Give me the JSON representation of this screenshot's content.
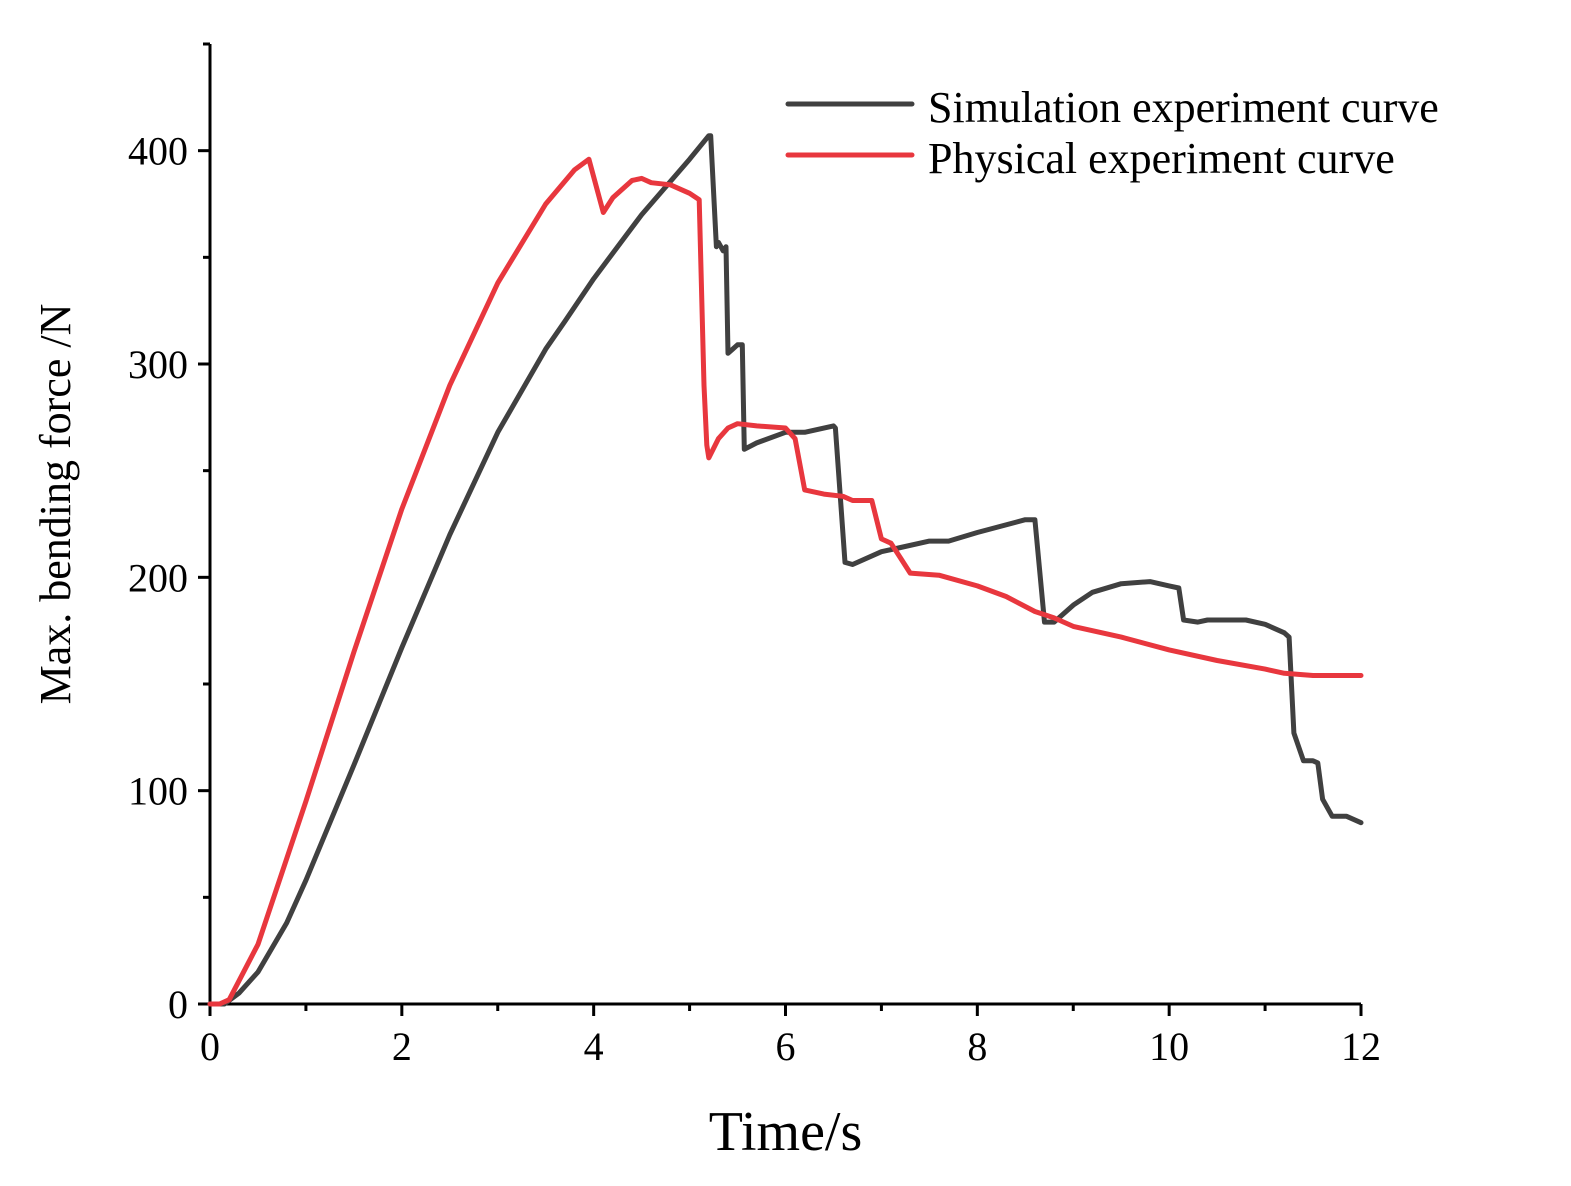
{
  "chart_data": {
    "type": "line",
    "title": "",
    "xlabel": "Time/s",
    "ylabel": "Max. bending force /N",
    "xlim": [
      0,
      12
    ],
    "ylim": [
      0,
      450
    ],
    "x_ticks": [
      0,
      2,
      4,
      6,
      8,
      10,
      12
    ],
    "x_tick_labels": [
      "0",
      "2",
      "4",
      "6",
      "8",
      "10",
      "12"
    ],
    "x_minor_ticks": [
      1,
      3,
      5,
      7,
      9,
      11
    ],
    "y_ticks": [
      0,
      100,
      200,
      300,
      400
    ],
    "y_tick_labels": [
      "0",
      "100",
      "200",
      "300",
      "400"
    ],
    "y_minor_ticks": [
      50,
      150,
      250,
      350,
      450
    ],
    "grid": false,
    "legend_position": "top-right",
    "series": [
      {
        "name": "Simulation experiment curve",
        "color": "#404040",
        "points": [
          [
            0,
            0
          ],
          [
            0.15,
            0
          ],
          [
            0.3,
            5
          ],
          [
            0.5,
            15
          ],
          [
            0.8,
            38
          ],
          [
            1,
            58
          ],
          [
            1.5,
            112
          ],
          [
            2,
            167
          ],
          [
            2.5,
            220
          ],
          [
            3,
            268
          ],
          [
            3.5,
            307
          ],
          [
            3.7,
            320
          ],
          [
            4,
            340
          ],
          [
            4.5,
            370
          ],
          [
            5,
            396
          ],
          [
            5.2,
            407
          ],
          [
            5.22,
            407
          ],
          [
            5.28,
            355
          ],
          [
            5.3,
            357
          ],
          [
            5.35,
            353
          ],
          [
            5.38,
            355
          ],
          [
            5.4,
            305
          ],
          [
            5.45,
            307
          ],
          [
            5.5,
            309
          ],
          [
            5.55,
            309
          ],
          [
            5.57,
            260
          ],
          [
            5.7,
            263
          ],
          [
            6,
            268
          ],
          [
            6.2,
            268
          ],
          [
            6.5,
            271
          ],
          [
            6.52,
            270
          ],
          [
            6.62,
            207
          ],
          [
            6.7,
            206
          ],
          [
            7,
            212
          ],
          [
            7.2,
            214
          ],
          [
            7.5,
            217
          ],
          [
            7.7,
            217
          ],
          [
            8,
            221
          ],
          [
            8.5,
            227
          ],
          [
            8.6,
            227
          ],
          [
            8.7,
            179
          ],
          [
            8.8,
            179
          ],
          [
            9,
            187
          ],
          [
            9.2,
            193
          ],
          [
            9.5,
            197
          ],
          [
            9.8,
            198
          ],
          [
            10,
            196
          ],
          [
            10.1,
            195
          ],
          [
            10.15,
            180
          ],
          [
            10.3,
            179
          ],
          [
            10.4,
            180
          ],
          [
            10.8,
            180
          ],
          [
            11,
            178
          ],
          [
            11.2,
            174
          ],
          [
            11.25,
            172
          ],
          [
            11.3,
            127
          ],
          [
            11.4,
            114
          ],
          [
            11.5,
            114
          ],
          [
            11.55,
            113
          ],
          [
            11.6,
            96
          ],
          [
            11.7,
            88
          ],
          [
            11.85,
            88
          ],
          [
            12,
            85
          ]
        ]
      },
      {
        "name": "Physical experiment curve",
        "color": "#e8373e",
        "points": [
          [
            0,
            0
          ],
          [
            0.1,
            0
          ],
          [
            0.2,
            2
          ],
          [
            0.5,
            28
          ],
          [
            1,
            95
          ],
          [
            1.5,
            165
          ],
          [
            2,
            232
          ],
          [
            2.5,
            290
          ],
          [
            3,
            338
          ],
          [
            3.5,
            375
          ],
          [
            3.8,
            391
          ],
          [
            3.95,
            396
          ],
          [
            4.1,
            371
          ],
          [
            4.2,
            378
          ],
          [
            4.4,
            386
          ],
          [
            4.5,
            387
          ],
          [
            4.6,
            385
          ],
          [
            4.8,
            384
          ],
          [
            5,
            380
          ],
          [
            5.1,
            377
          ],
          [
            5.15,
            290
          ],
          [
            5.18,
            262
          ],
          [
            5.2,
            256
          ],
          [
            5.3,
            265
          ],
          [
            5.4,
            270
          ],
          [
            5.5,
            272
          ],
          [
            5.7,
            271
          ],
          [
            6,
            270
          ],
          [
            6.1,
            265
          ],
          [
            6.2,
            241
          ],
          [
            6.4,
            239
          ],
          [
            6.6,
            238
          ],
          [
            6.7,
            236
          ],
          [
            6.9,
            236
          ],
          [
            7,
            218
          ],
          [
            7.1,
            216
          ],
          [
            7.2,
            209
          ],
          [
            7.3,
            202
          ],
          [
            7.6,
            201
          ],
          [
            8,
            196
          ],
          [
            8.3,
            191
          ],
          [
            8.6,
            184
          ],
          [
            8.8,
            181
          ],
          [
            9,
            177
          ],
          [
            9.5,
            172
          ],
          [
            10,
            166
          ],
          [
            10.5,
            161
          ],
          [
            11,
            157
          ],
          [
            11.2,
            155
          ],
          [
            11.5,
            154
          ],
          [
            12,
            154
          ]
        ]
      }
    ]
  }
}
